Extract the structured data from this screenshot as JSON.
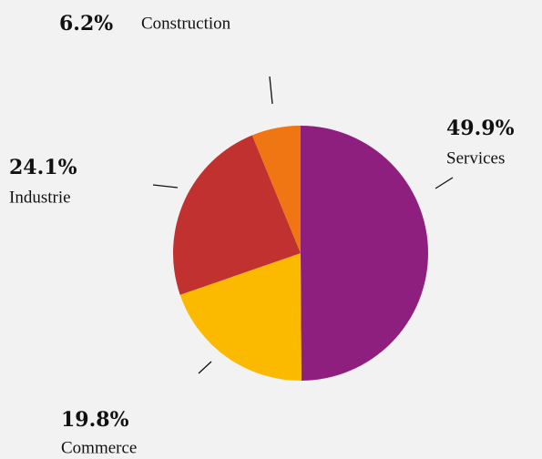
{
  "chart_data": {
    "type": "pie",
    "categories": [
      "Services",
      "Commerce",
      "Industrie",
      "Construction"
    ],
    "values": [
      49.9,
      19.8,
      24.1,
      6.2
    ],
    "value_labels": [
      "49.9%",
      "19.8%",
      "24.1%",
      "6.2%"
    ],
    "colors": [
      "#8e1f7e",
      "#fbb900",
      "#c1312f",
      "#ef7612"
    ]
  }
}
